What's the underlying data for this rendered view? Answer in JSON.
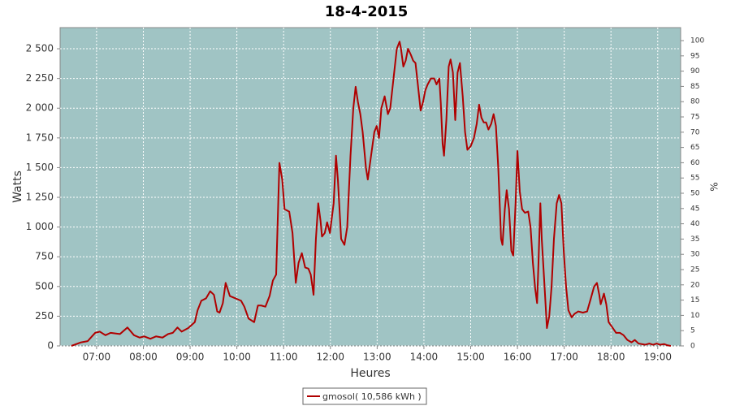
{
  "chart_data": {
    "type": "line",
    "title": "18-4-2015",
    "x_label": "Heures",
    "y_label": "Watts",
    "y2_label": "%",
    "x": [
      6.46,
      6.67,
      6.81,
      6.9,
      6.97,
      7.07,
      7.19,
      7.3,
      7.5,
      7.66,
      7.8,
      7.92,
      8.02,
      8.15,
      8.27,
      8.41,
      8.53,
      8.63,
      8.73,
      8.82,
      8.96,
      9.1,
      9.16,
      9.24,
      9.34,
      9.43,
      9.51,
      9.58,
      9.63,
      9.7,
      9.76,
      9.85,
      9.97,
      10.09,
      10.16,
      10.25,
      10.37,
      10.45,
      10.52,
      10.61,
      10.7,
      10.77,
      10.84,
      10.91,
      10.97,
      11.02,
      11.12,
      11.19,
      11.26,
      11.32,
      11.39,
      11.46,
      11.53,
      11.58,
      11.64,
      11.69,
      11.74,
      11.79,
      11.82,
      11.88,
      11.93,
      11.99,
      12.07,
      12.12,
      12.16,
      12.23,
      12.3,
      12.36,
      12.43,
      12.49,
      12.54,
      12.59,
      12.64,
      12.69,
      12.76,
      12.8,
      12.87,
      12.94,
      12.99,
      13.04,
      13.09,
      13.16,
      13.23,
      13.28,
      13.35,
      13.42,
      13.48,
      13.51,
      13.56,
      13.61,
      13.66,
      13.72,
      13.77,
      13.82,
      13.87,
      13.93,
      13.98,
      14.03,
      14.08,
      14.15,
      14.22,
      14.27,
      14.33,
      14.36,
      14.4,
      14.43,
      14.48,
      14.53,
      14.57,
      14.62,
      14.67,
      14.72,
      14.77,
      14.83,
      14.88,
      14.93,
      15.0,
      15.07,
      15.13,
      15.18,
      15.23,
      15.28,
      15.33,
      15.38,
      15.44,
      15.49,
      15.54,
      15.59,
      15.65,
      15.68,
      15.73,
      15.77,
      15.82,
      15.87,
      15.91,
      15.96,
      16.0,
      16.05,
      16.1,
      16.16,
      16.23,
      16.28,
      16.33,
      16.38,
      16.42,
      16.45,
      16.49,
      16.52,
      16.58,
      16.63,
      16.68,
      16.73,
      16.78,
      16.84,
      16.89,
      16.94,
      16.99,
      17.04,
      17.09,
      17.16,
      17.22,
      17.3,
      17.4,
      17.49,
      17.57,
      17.64,
      17.7,
      17.75,
      17.78,
      17.85,
      17.9,
      17.95,
      18.04,
      18.11,
      18.19,
      18.27,
      18.35,
      18.44,
      18.51,
      18.59,
      18.73,
      18.82,
      18.9,
      18.98,
      19.05,
      19.14,
      19.21,
      19.28
    ],
    "series": [
      {
        "name": "gmosol( 10,586 kWh )",
        "color": "#b00000",
        "values": [
          0,
          30,
          40,
          80,
          110,
          120,
          90,
          110,
          100,
          155,
          90,
          70,
          80,
          60,
          80,
          70,
          100,
          110,
          155,
          120,
          150,
          200,
          300,
          380,
          400,
          460,
          430,
          290,
          280,
          360,
          530,
          420,
          400,
          380,
          330,
          230,
          200,
          340,
          340,
          330,
          420,
          550,
          600,
          1540,
          1400,
          1150,
          1130,
          950,
          530,
          700,
          780,
          660,
          650,
          600,
          430,
          900,
          1200,
          1050,
          920,
          950,
          1040,
          950,
          1200,
          1600,
          1400,
          900,
          850,
          1000,
          1600,
          2000,
          2180,
          2050,
          1950,
          1800,
          1500,
          1400,
          1600,
          1800,
          1850,
          1750,
          2000,
          2100,
          1950,
          2000,
          2250,
          2500,
          2560,
          2500,
          2350,
          2400,
          2500,
          2450,
          2400,
          2380,
          2200,
          1980,
          2050,
          2150,
          2200,
          2250,
          2250,
          2200,
          2250,
          2050,
          1700,
          1600,
          1900,
          2350,
          2410,
          2300,
          1900,
          2300,
          2380,
          2100,
          1800,
          1650,
          1680,
          1750,
          1870,
          2030,
          1920,
          1880,
          1880,
          1820,
          1870,
          1950,
          1850,
          1500,
          900,
          850,
          1150,
          1310,
          1150,
          800,
          760,
          1200,
          1640,
          1300,
          1150,
          1120,
          1130,
          1000,
          700,
          480,
          360,
          700,
          1200,
          900,
          500,
          150,
          250,
          500,
          900,
          1200,
          1270,
          1200,
          800,
          500,
          300,
          240,
          270,
          290,
          280,
          290,
          400,
          500,
          530,
          430,
          350,
          440,
          350,
          200,
          150,
          110,
          110,
          90,
          50,
          30,
          50,
          20,
          10,
          20,
          10,
          20,
          10,
          15,
          5,
          0
        ]
      }
    ],
    "xlim": [
      6.22,
      19.49
    ],
    "ylim": [
      0,
      2678
    ],
    "y2lim": [
      0,
      104.26
    ],
    "xticks": [
      {
        "value": 7,
        "label": "07:00"
      },
      {
        "value": 8,
        "label": "08:00"
      },
      {
        "value": 9,
        "label": "09:00"
      },
      {
        "value": 10,
        "label": "10:00"
      },
      {
        "value": 11,
        "label": "11:00"
      },
      {
        "value": 12,
        "label": "12:00"
      },
      {
        "value": 13,
        "label": "13:00"
      },
      {
        "value": 14,
        "label": "14:00"
      },
      {
        "value": 15,
        "label": "15:00"
      },
      {
        "value": 16,
        "label": "16:00"
      },
      {
        "value": 17,
        "label": "17:00"
      },
      {
        "value": 18,
        "label": "18:00"
      },
      {
        "value": 19,
        "label": "19:00"
      }
    ],
    "yticks": [
      0,
      250,
      500,
      750,
      {
        "value": 1000,
        "label": "1 000"
      },
      {
        "value": 1250,
        "label": "1 250"
      },
      {
        "value": 1500,
        "label": "1 500"
      },
      {
        "value": 1750,
        "label": "1 750"
      },
      {
        "value": 2000,
        "label": "2 000"
      },
      {
        "value": 2250,
        "label": "2 250"
      },
      {
        "value": 2500,
        "label": "2 500"
      }
    ],
    "y2ticks": [
      0,
      5,
      10,
      15,
      20,
      25,
      30,
      35,
      40,
      45,
      50,
      55,
      60,
      65,
      70,
      75,
      80,
      85,
      90,
      95,
      100
    ],
    "grid": true,
    "plot_background": "#a0c4c4"
  }
}
